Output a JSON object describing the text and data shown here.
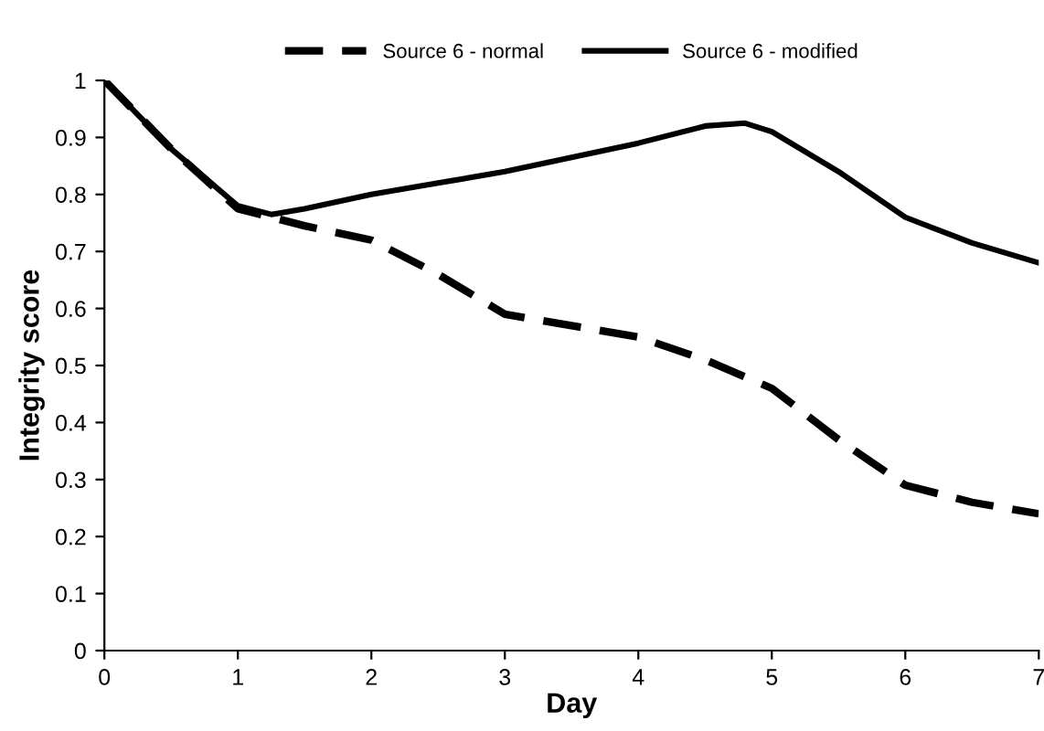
{
  "chart_data": {
    "type": "line",
    "xlabel": "Day",
    "ylabel": "Integrity score",
    "xlim": [
      0,
      7
    ],
    "xticks": [
      0,
      1,
      2,
      3,
      4,
      5,
      6,
      7
    ],
    "ylim": [
      0,
      1
    ],
    "yticks": [
      0,
      0.1,
      0.2,
      0.3,
      0.4,
      0.5,
      0.6,
      0.7,
      0.8,
      0.9,
      1
    ],
    "grid": false,
    "legend": "top",
    "marker": "none",
    "series": [
      {
        "name": "Source 6 - normal",
        "color": "#000000",
        "line_style": "dashed",
        "x": [
          0,
          0.5,
          1,
          1.5,
          2,
          2.5,
          3,
          3.5,
          4,
          4.5,
          5,
          5.5,
          6,
          6.5,
          7
        ],
        "values": [
          1,
          0.88,
          0.775,
          0.745,
          0.72,
          0.66,
          0.59,
          0.57,
          0.55,
          0.51,
          0.46,
          0.37,
          0.29,
          0.26,
          0.24
        ]
      },
      {
        "name": "Source 6 - modified",
        "color": "#000000",
        "line_style": "solid",
        "x": [
          0,
          0.5,
          1,
          1.25,
          1.5,
          2,
          2.5,
          3,
          3.5,
          4,
          4.5,
          4.8,
          5,
          5.5,
          6,
          6.5,
          7
        ],
        "values": [
          1,
          0.88,
          0.78,
          0.765,
          0.775,
          0.8,
          0.82,
          0.84,
          0.865,
          0.89,
          0.92,
          0.925,
          0.91,
          0.84,
          0.76,
          0.715,
          0.68
        ]
      }
    ]
  }
}
